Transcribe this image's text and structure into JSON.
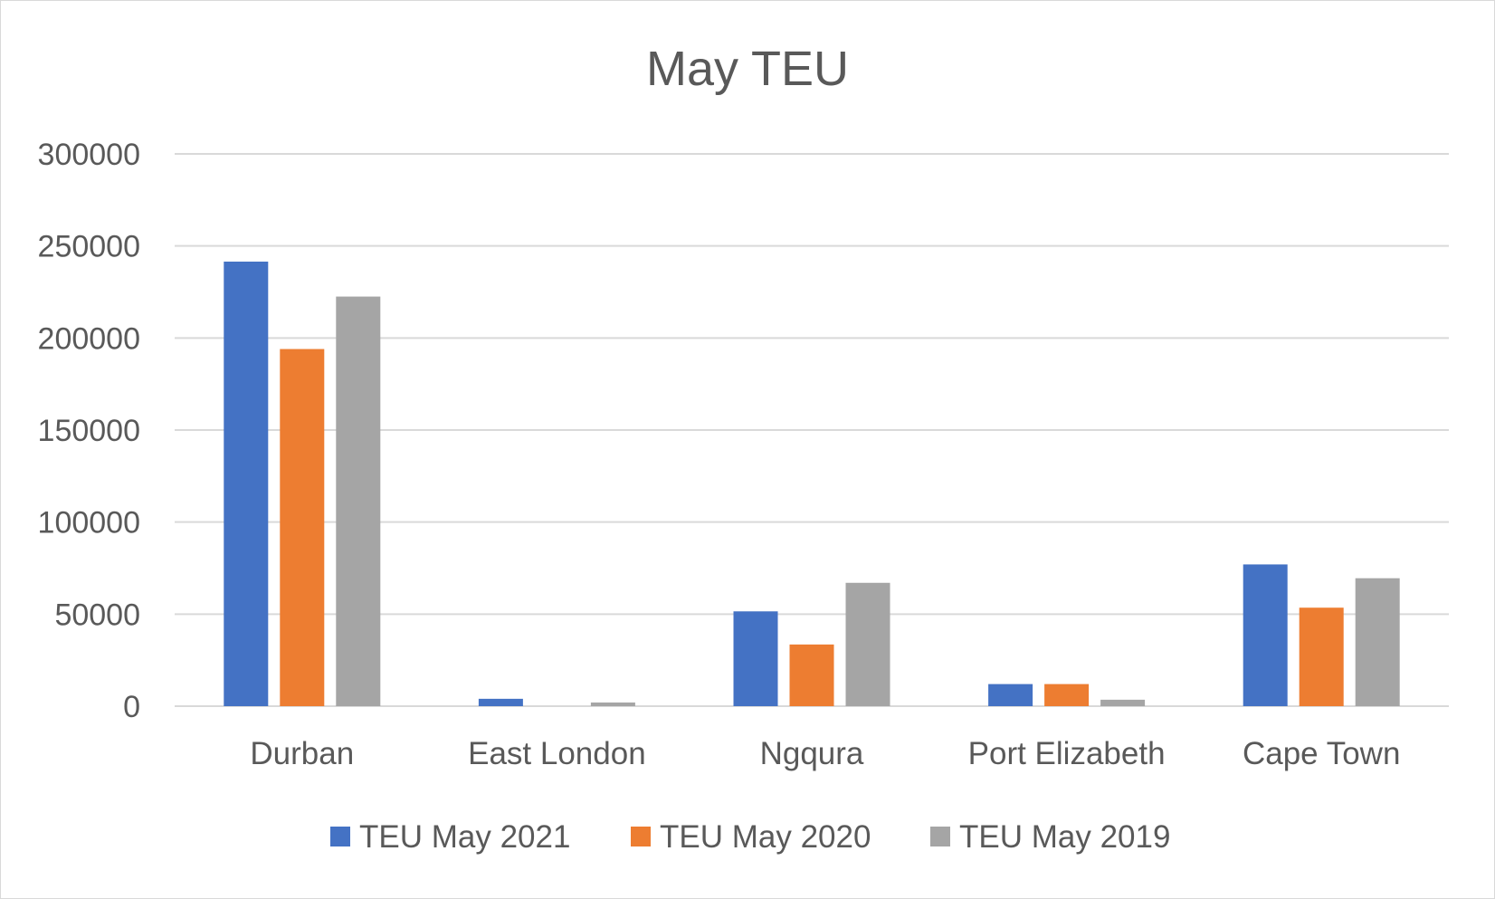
{
  "chart_data": {
    "type": "bar",
    "title": "May TEU",
    "xlabel": "",
    "ylabel": "",
    "categories": [
      "Durban",
      "East London",
      "Ngqura",
      "Port Elizabeth",
      "Cape Town"
    ],
    "series": [
      {
        "name": "TEU May 2021",
        "color": "#4472C4",
        "values": [
          241500,
          4000,
          51500,
          12000,
          77000
        ]
      },
      {
        "name": "TEU May 2020",
        "color": "#ED7D31",
        "values": [
          194000,
          0,
          33500,
          12000,
          53500
        ]
      },
      {
        "name": "TEU May 2019",
        "color": "#A5A5A5",
        "values": [
          222500,
          2000,
          67000,
          3500,
          69500
        ]
      }
    ],
    "ylim": [
      0,
      300000
    ],
    "yticks": [
      0,
      50000,
      100000,
      150000,
      200000,
      250000,
      300000
    ],
    "ytick_labels": [
      "0",
      "50000",
      "100000",
      "150000",
      "200000",
      "250000",
      "300000"
    ],
    "grid": true,
    "legend_position": "bottom",
    "gridline_color": "#d9d9d9",
    "text_color": "#595959"
  }
}
